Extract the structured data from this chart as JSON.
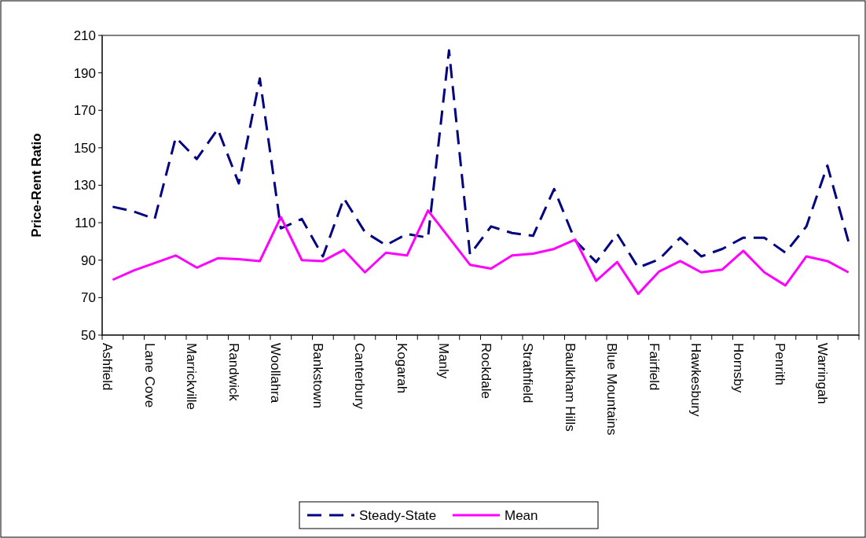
{
  "chart_data": {
    "type": "line",
    "ylabel": "Price-Rent Ratio",
    "categories": [
      "Ashfield",
      null,
      "Lane Cove",
      null,
      "Marrickville",
      null,
      "Randwick",
      null,
      "Woollahra",
      null,
      "Bankstown",
      null,
      "Canterbury",
      null,
      "Kogarah",
      null,
      "Manly",
      null,
      "Rockdale",
      null,
      "Strathfield",
      null,
      "Baulkham Hills",
      null,
      "Blue Mountains",
      null,
      "Fairfield",
      null,
      "Hawkesbury",
      null,
      "Hornsby",
      null,
      "Penrith",
      null,
      "Warringah",
      null
    ],
    "ylim": [
      50,
      210
    ],
    "yticks": [
      50,
      70,
      90,
      110,
      130,
      150,
      170,
      190,
      210
    ],
    "legend": "bottom",
    "marker": "none",
    "series": [
      {
        "name": "Steady-State",
        "color": "#000080",
        "line_style": "dashed",
        "values": [
          118.5,
          116,
          112,
          155.5,
          144,
          160,
          131,
          187,
          107,
          112,
          92,
          123,
          105,
          98,
          104,
          102,
          202,
          93,
          108,
          104.5,
          103,
          128,
          100.5,
          89,
          104,
          86,
          90.5,
          102,
          92,
          96,
          102,
          102,
          94,
          108,
          140.5,
          100
        ]
      },
      {
        "name": "Mean",
        "color": "#ff00ff",
        "line_style": "solid",
        "values": [
          79.5,
          84.5,
          88.5,
          92.5,
          86,
          91,
          90.5,
          89.5,
          113,
          90,
          89.5,
          95.5,
          83.5,
          94,
          92.5,
          116.5,
          102,
          87.5,
          85.5,
          92.5,
          93.5,
          96,
          101,
          79,
          89,
          72,
          84,
          89.5,
          83.5,
          85,
          95,
          83.5,
          76.5,
          92,
          89.5,
          83.5
        ]
      }
    ]
  }
}
